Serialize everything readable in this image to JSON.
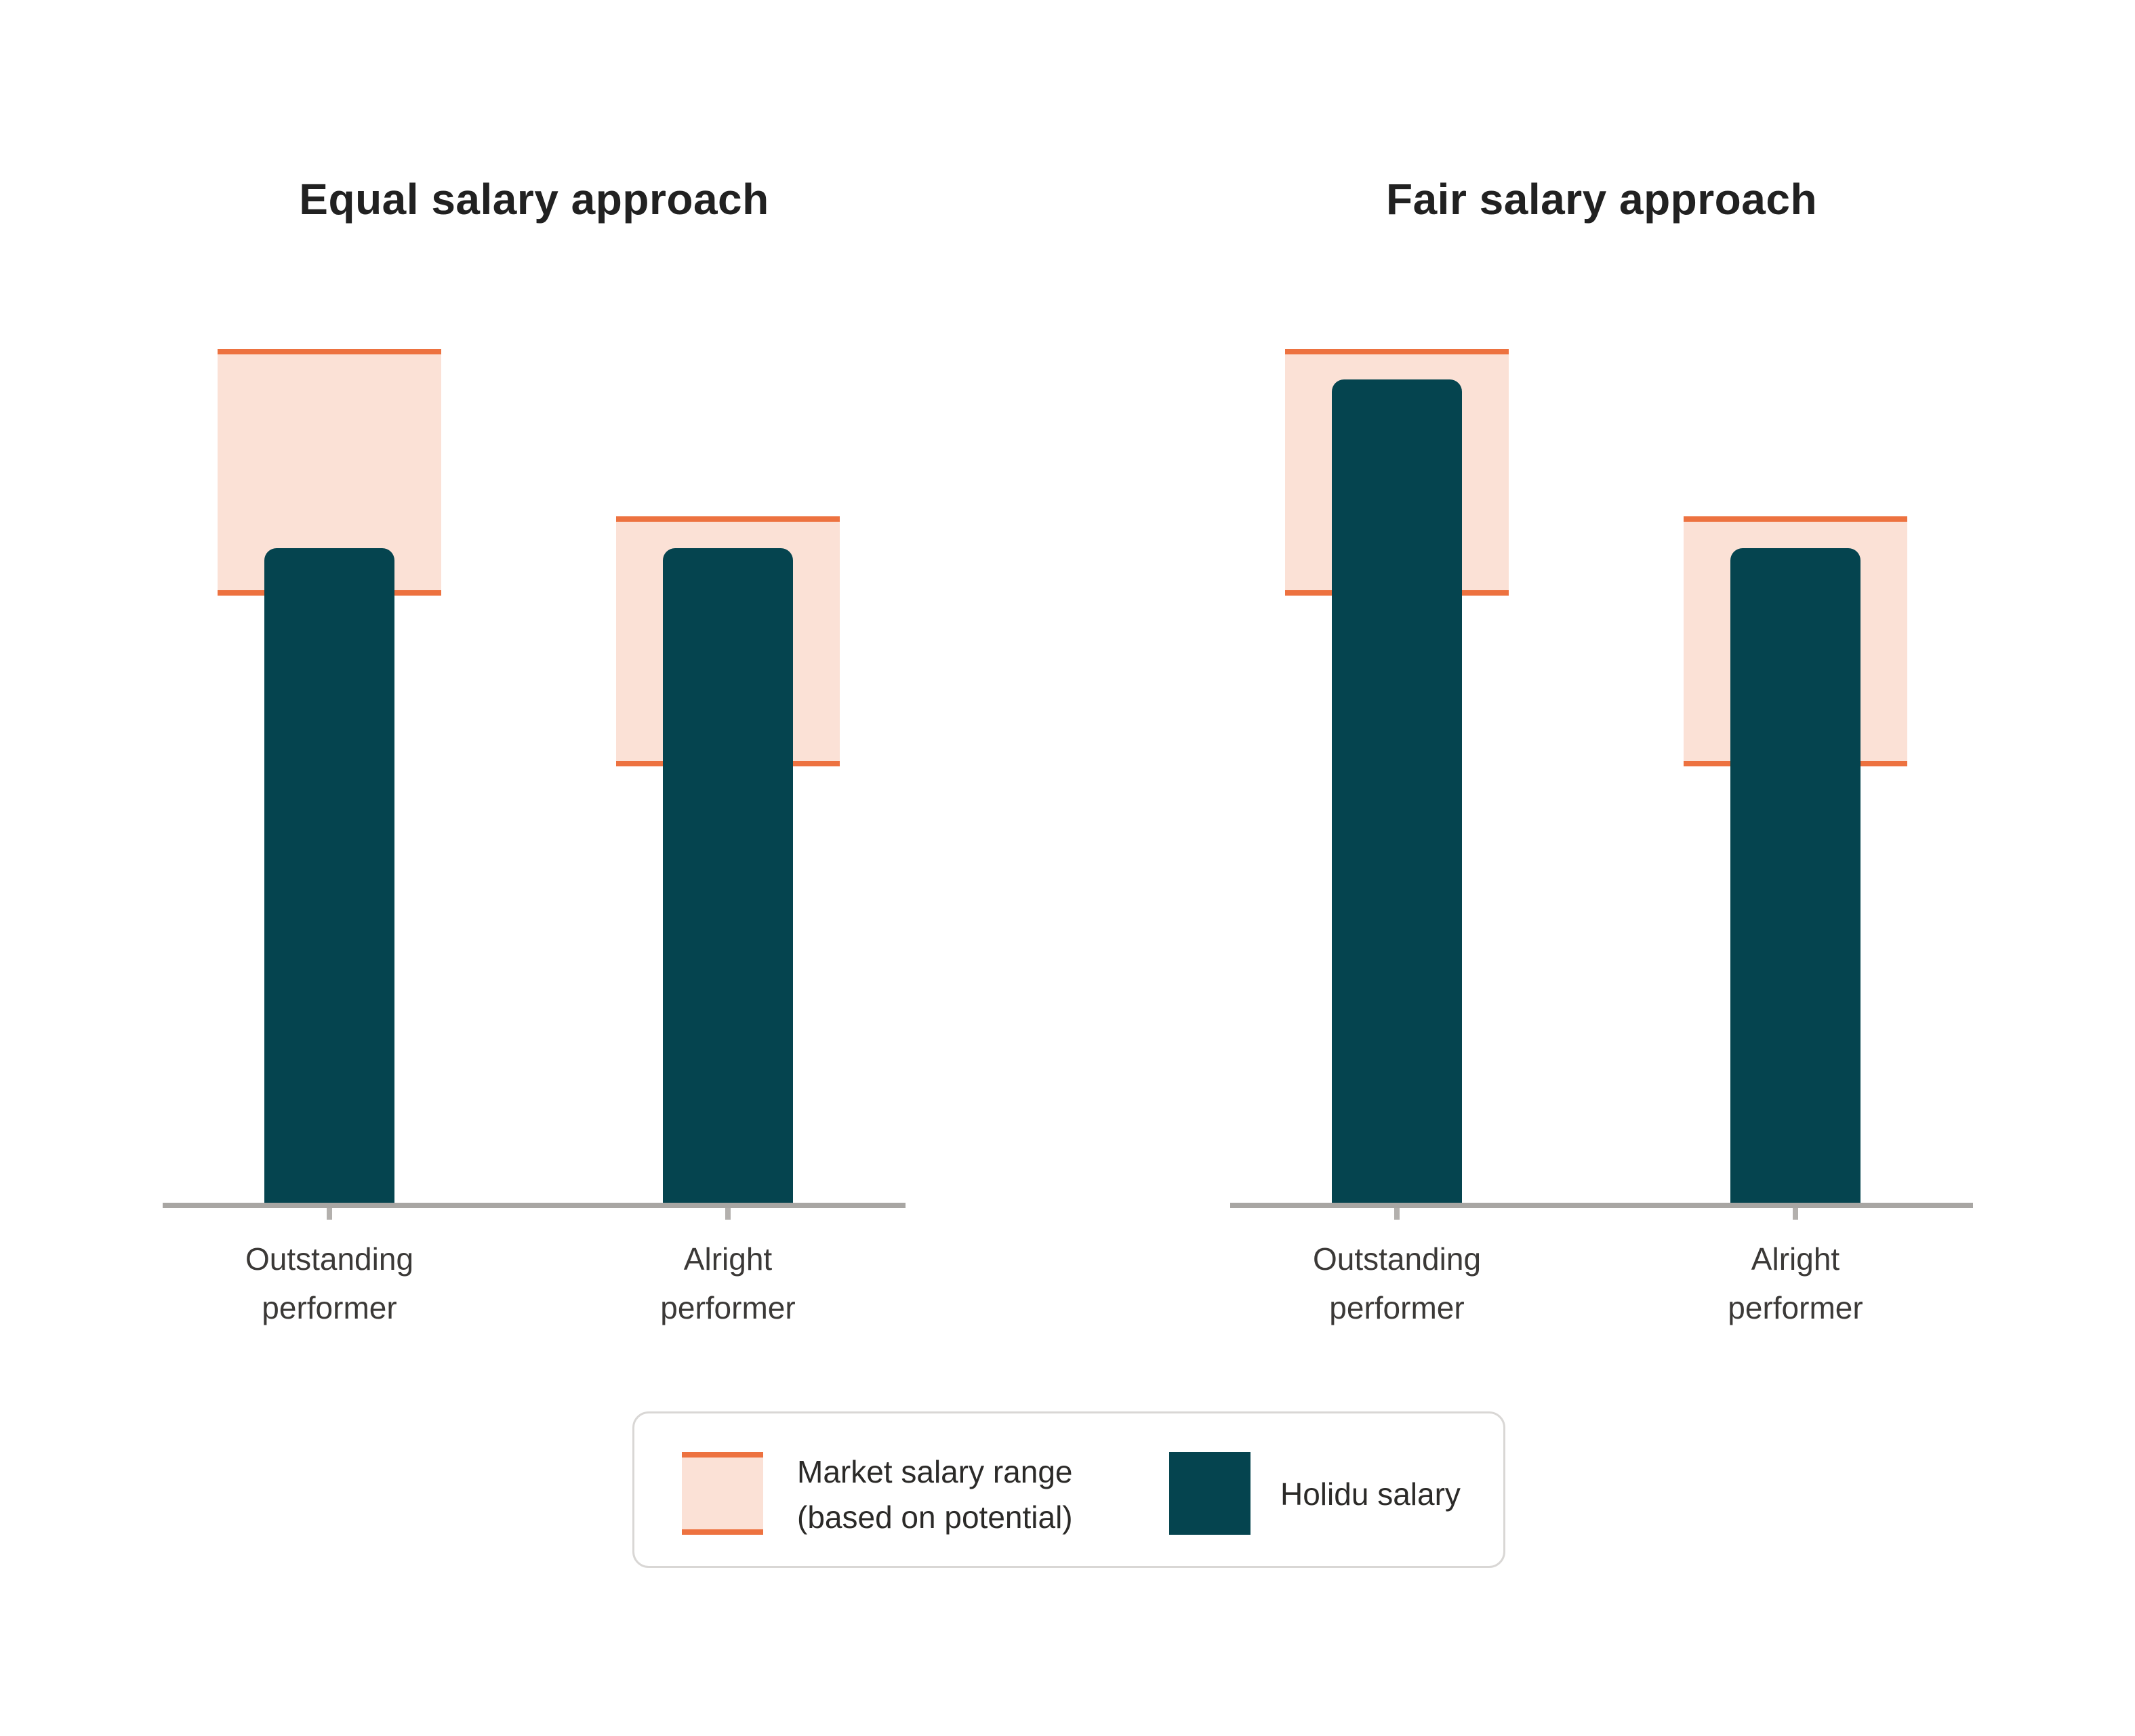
{
  "page": {
    "background": "#ffffff",
    "description": "Comparison of two salary-setting approaches, two grouped bar panels with market-range bands and a shared legend"
  },
  "colors": {
    "teal": "#05444f",
    "orange": "#ed7240",
    "peach": "#fbe1d6",
    "axis": "#a8a6a3",
    "tick": "#b3b0ad",
    "title": "#212121",
    "label": "#3b3937",
    "legend_border": "#d9d7d5",
    "legend_text": "#2b2a28",
    "bg": "#ffffff"
  },
  "legend": {
    "position": "bottom-center",
    "items": [
      {
        "swatch": "range-band",
        "lines": [
          "Market salary range",
          "(based on potential)"
        ]
      },
      {
        "swatch": "solid-bar",
        "lines": [
          "Holidu salary"
        ]
      }
    ]
  },
  "chart_data": [
    {
      "type": "bar",
      "title": "Equal salary approach",
      "categories": [
        "Outstanding performer",
        "Alright performer"
      ],
      "category_lines": [
        [
          "Outstanding",
          "performer"
        ],
        [
          "Alright",
          "performer"
        ]
      ],
      "series": [
        {
          "name": "Market salary range (based on potential)",
          "style": "range-band",
          "low": [
            71.1,
            51.1
          ],
          "high": [
            100.0,
            80.4
          ]
        },
        {
          "name": "Holidu salary",
          "style": "bar",
          "values": [
            76.7,
            76.7
          ]
        }
      ],
      "xlabel": "",
      "ylabel": "",
      "ylim": [
        0,
        105
      ],
      "y_axis_visible": false,
      "grid": false,
      "value_units": "relative salary level 0-100 (no numeric axis shown; values estimated from bar heights)"
    },
    {
      "type": "bar",
      "title": "Fair salary approach",
      "categories": [
        "Outstanding performer",
        "Alright performer"
      ],
      "category_lines": [
        [
          "Outstanding",
          "performer"
        ],
        [
          "Alright",
          "performer"
        ]
      ],
      "series": [
        {
          "name": "Market salary range (based on potential)",
          "style": "range-band",
          "low": [
            71.1,
            51.1
          ],
          "high": [
            100.0,
            80.4
          ]
        },
        {
          "name": "Holidu salary",
          "style": "bar",
          "values": [
            96.4,
            76.7
          ]
        }
      ],
      "xlabel": "",
      "ylabel": "",
      "ylim": [
        0,
        105
      ],
      "y_axis_visible": false,
      "grid": false,
      "value_units": "relative salary level 0-100 (no numeric axis shown; values estimated from bar heights)"
    }
  ]
}
